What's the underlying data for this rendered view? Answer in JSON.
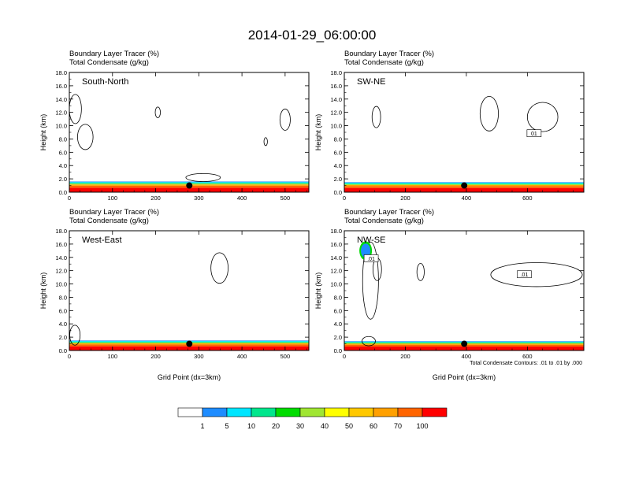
{
  "figure": {
    "title": "2014-01-29_06:00:00",
    "footnote": "Total Condensate Contours: .01 to .01 by .000"
  },
  "chart_data": [
    {
      "type": "heatmap",
      "panel": "South-North",
      "title_lines": [
        "Boundary Layer Tracer   (%)",
        "Total Condensate   (g/kg)"
      ],
      "ylabel": "Height (km)",
      "xlabel": "",
      "xlim": [
        0,
        555
      ],
      "ylim": [
        0,
        18
      ],
      "x_ticks": [
        0,
        100,
        200,
        300,
        400,
        500
      ],
      "y_ticks": [
        "0.0",
        "2.0",
        "4.0",
        "6.0",
        "8.0",
        "10.0",
        "12.0",
        "14.0",
        "16.0",
        "18.0"
      ],
      "marker": {
        "x": 278,
        "y": 1.0
      },
      "tracer_layer_top_km": 1.6,
      "contour_labels": []
    },
    {
      "type": "heatmap",
      "panel": "SW-NE",
      "title_lines": [
        "Boundary Layer Tracer   (%)",
        "Total Condensate   (g/kg)"
      ],
      "ylabel": "Height (km)",
      "xlabel": "",
      "xlim": [
        0,
        785
      ],
      "ylim": [
        0,
        18
      ],
      "x_ticks": [
        0,
        200,
        400,
        600
      ],
      "y_ticks": [
        "0.0",
        "2.0",
        "4.0",
        "6.0",
        "8.0",
        "10.0",
        "12.0",
        "14.0",
        "16.0",
        "18.0"
      ],
      "marker": {
        "x": 393,
        "y": 1.0
      },
      "tracer_layer_top_km": 1.5,
      "contour_labels": [
        {
          "text": "01",
          "x": 622,
          "y": 8.8
        }
      ]
    },
    {
      "type": "heatmap",
      "panel": "West-East",
      "title_lines": [
        "Boundary Layer Tracer   (%)",
        "Total Condensate   (g/kg)"
      ],
      "ylabel": "Height (km)",
      "xlabel": "Grid Point (dx=3km)",
      "xlim": [
        0,
        555
      ],
      "ylim": [
        0,
        18
      ],
      "x_ticks": [
        0,
        100,
        200,
        300,
        400,
        500
      ],
      "y_ticks": [
        "0.0",
        "2.0",
        "4.0",
        "6.0",
        "8.0",
        "10.0",
        "12.0",
        "14.0",
        "16.0",
        "18.0"
      ],
      "marker": {
        "x": 278,
        "y": 1.0
      },
      "tracer_layer_top_km": 1.5,
      "contour_labels": []
    },
    {
      "type": "heatmap",
      "panel": "NW-SE",
      "title_lines": [
        "Boundary Layer Tracer   (%)",
        "Total Condensate   (g/kg)"
      ],
      "ylabel": "Height (km)",
      "xlabel": "Grid Point (dx=3km)",
      "xlim": [
        0,
        785
      ],
      "ylim": [
        0,
        18
      ],
      "x_ticks": [
        0,
        200,
        400,
        600
      ],
      "y_ticks": [
        "0.0",
        "2.0",
        "4.0",
        "6.0",
        "8.0",
        "10.0",
        "12.0",
        "14.0",
        "16.0",
        "18.0"
      ],
      "marker": {
        "x": 393,
        "y": 1.0
      },
      "tracer_layer_top_km": 1.4,
      "contour_labels": [
        {
          "text": ".01",
          "x": 88,
          "y": 13.8
        },
        {
          "text": ".01",
          "x": 590,
          "y": 11.4
        }
      ]
    }
  ],
  "colorbar": {
    "labels": [
      "1",
      "5",
      "10",
      "20",
      "30",
      "40",
      "50",
      "60",
      "70",
      "100"
    ],
    "colors": [
      "#ffffff",
      "#1e8cff",
      "#00e6ff",
      "#00e68c",
      "#00dc00",
      "#a0e632",
      "#ffff00",
      "#ffc800",
      "#ffa000",
      "#ff6400",
      "#ff0000"
    ]
  }
}
